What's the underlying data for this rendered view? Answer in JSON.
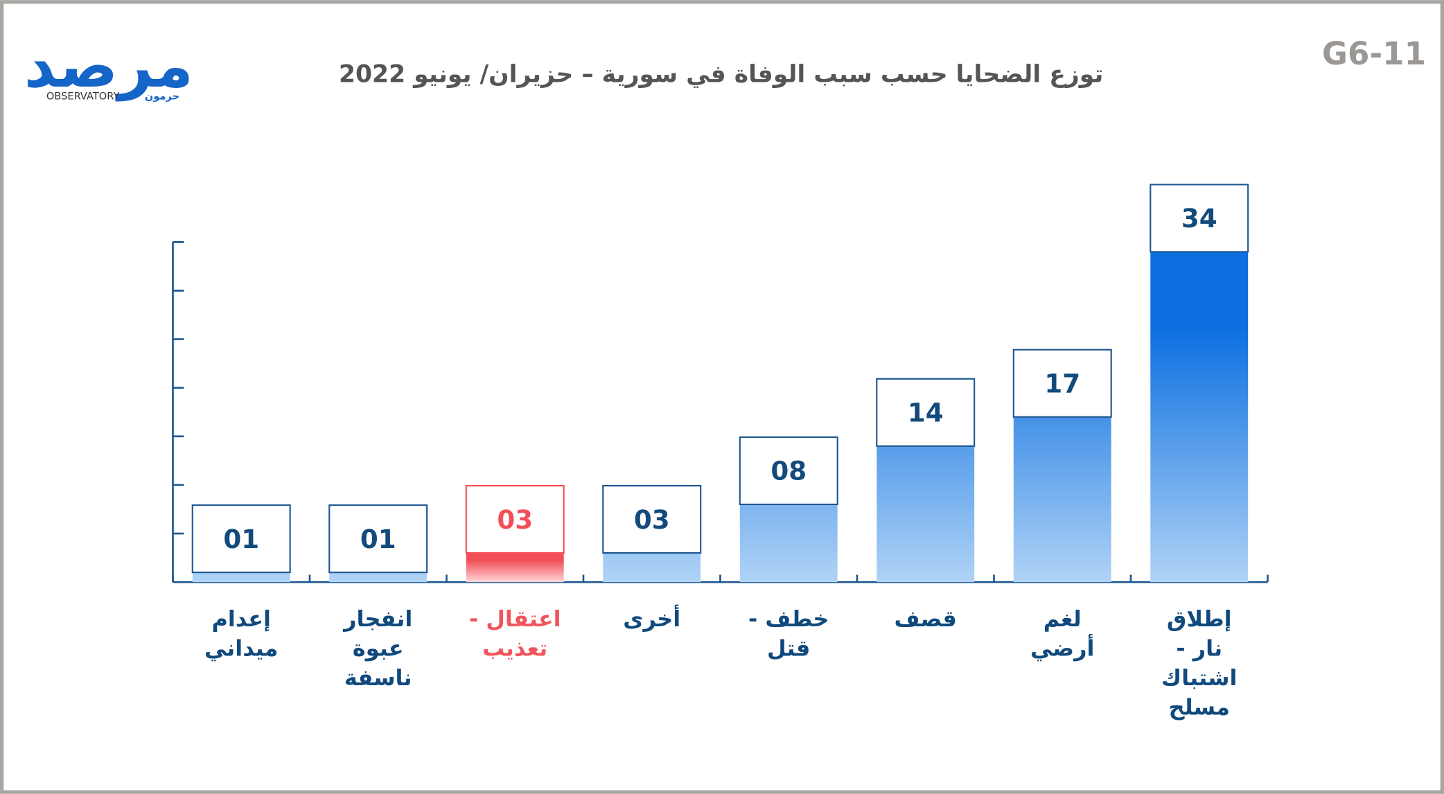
{
  "code": "G6-11",
  "logo": {
    "main": "مرصد",
    "sub": "OBSERVATORY",
    "tag": "حرمون"
  },
  "chart_data": {
    "type": "bar",
    "title": "توزع الضحايا حسب سبب الوفاة في سورية – حزيران/ يونيو 2022",
    "categories": [
      "إعدام ميداني",
      "انفجار عبوة ناسفة",
      "اعتقال - تعذيب",
      "أخرى",
      "خطف - قتل",
      "قصف",
      "لغم أرضي",
      "إطلاق نار - اشتباك مسلح"
    ],
    "values": [
      1,
      1,
      3,
      3,
      8,
      14,
      17,
      34
    ],
    "value_labels": [
      "01",
      "01",
      "03",
      "03",
      "08",
      "14",
      "17",
      "34"
    ],
    "colors": [
      "#0b6fe0",
      "#0b6fe0",
      "#f24f58",
      "#0b6fe0",
      "#0b6fe0",
      "#0b6fe0",
      "#0b6fe0",
      "#0b6fe0"
    ],
    "ylim": [
      0,
      35
    ],
    "yticks": [
      0,
      5,
      10,
      15,
      20,
      25,
      30,
      35
    ]
  }
}
